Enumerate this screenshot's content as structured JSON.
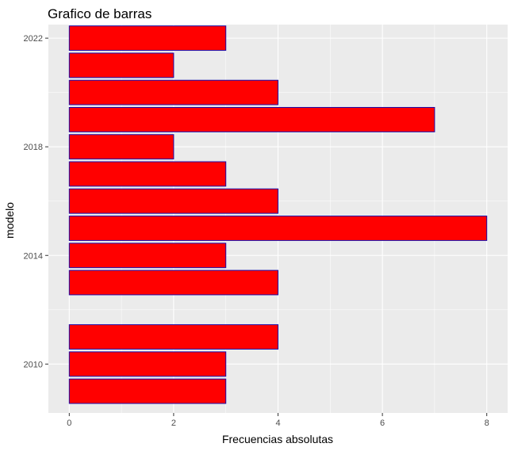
{
  "chart_data": {
    "type": "bar",
    "orientation": "horizontal",
    "title": "Grafico de barras",
    "xlabel": "Frecuencias absolutas",
    "ylabel": "modelo",
    "categories": [
      2009,
      2010,
      2011,
      2013,
      2014,
      2015,
      2016,
      2017,
      2018,
      2019,
      2020,
      2021,
      2022
    ],
    "values": [
      3,
      3,
      4,
      4,
      3,
      8,
      4,
      3,
      2,
      7,
      4,
      2,
      3
    ],
    "xlim": [
      -0.4,
      8.4
    ],
    "ylim": [
      2008.2,
      2022.5
    ],
    "xticks": [
      0,
      2,
      4,
      6,
      8
    ],
    "xtick_labels": [
      "0",
      "2",
      "4",
      "6",
      "8"
    ],
    "yticks": [
      2010,
      2014,
      2018,
      2022
    ],
    "ytick_labels": [
      "2010",
      "2014",
      "2018",
      "2022"
    ],
    "grid": true,
    "colors": {
      "panel_background": "#ebebeb",
      "grid_major": "#ffffff",
      "bar_fill": "#ff0000",
      "bar_outline": "#1a0dab"
    }
  }
}
